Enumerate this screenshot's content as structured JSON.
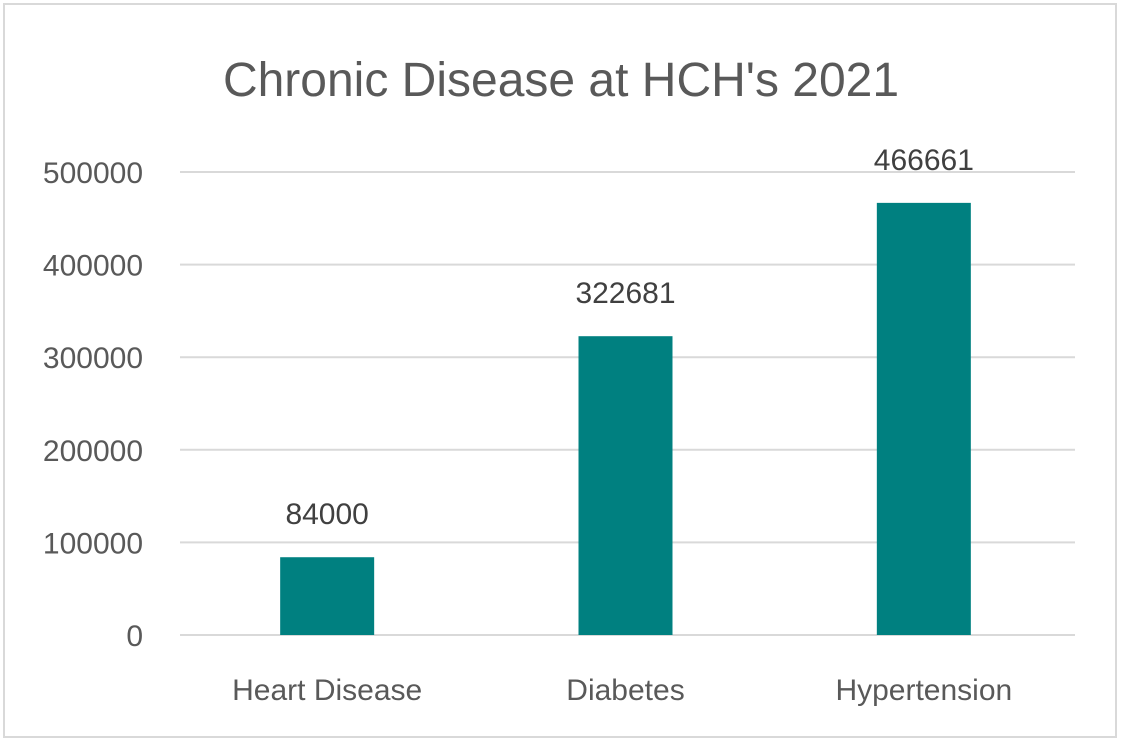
{
  "chart_data": {
    "type": "bar",
    "title": "Chronic Disease at HCH's 2021",
    "categories": [
      "Heart Disease",
      "Diabetes",
      "Hypertension"
    ],
    "values": [
      84000,
      322681,
      466661
    ],
    "data_labels": [
      "84000",
      "322681",
      "466661"
    ],
    "ylim": [
      0,
      500000
    ],
    "yticks": [
      0,
      100000,
      200000,
      300000,
      400000,
      500000
    ],
    "ytick_labels": [
      "0",
      "100000",
      "200000",
      "300000",
      "400000",
      "500000"
    ],
    "grid": true,
    "legend": "none",
    "bar_color": "#008080"
  }
}
